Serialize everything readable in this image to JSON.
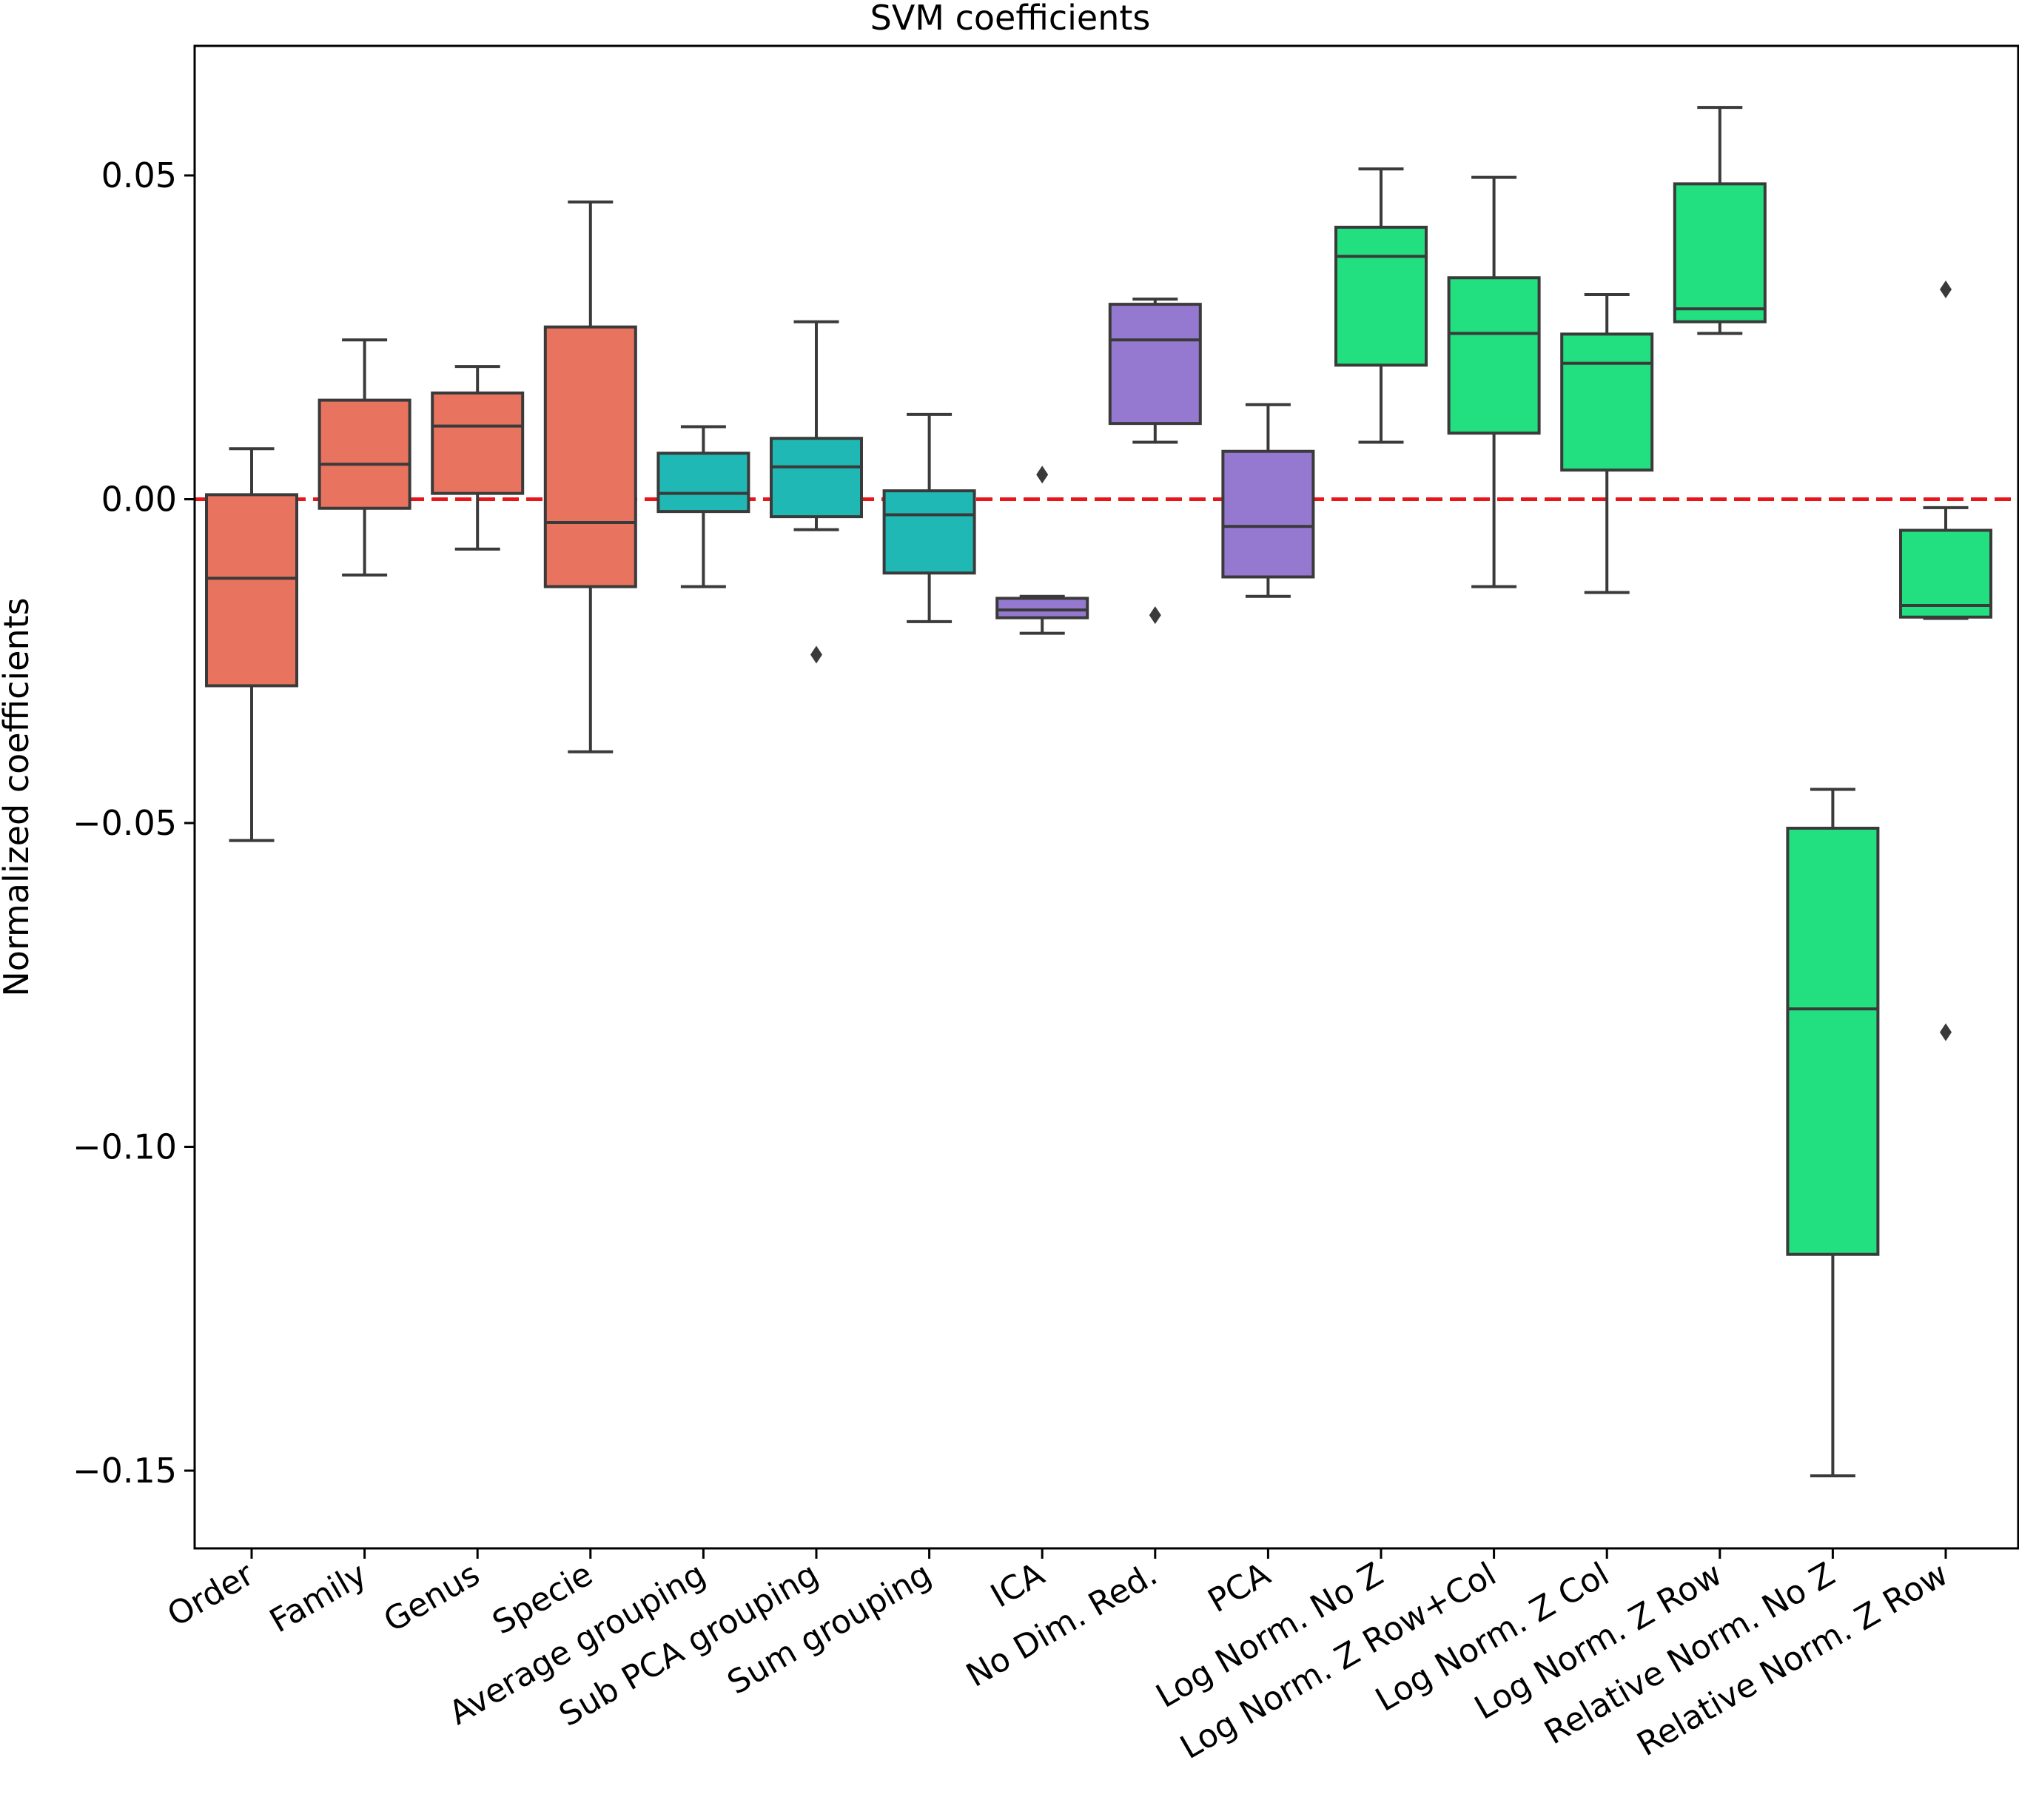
{
  "chart_data": {
    "type": "box",
    "title": "SVM coefficients",
    "xlabel": "",
    "ylabel": "Normalized coefficients",
    "ylim": [
      -0.162,
      0.07
    ],
    "yticks": [
      0.05,
      0.0,
      -0.05,
      -0.1,
      -0.15
    ],
    "ytick_labels": [
      "0.05",
      "0.00",
      "−0.05",
      "−0.10",
      "−0.15"
    ],
    "reference_line": {
      "value": 0.0,
      "color": "#e8151b",
      "style": "dashed"
    },
    "colors": {
      "taxonomy": "#e8735e",
      "grouping": "#1fb8b4",
      "dim_reduction": "#9579d1",
      "normalization": "#22df7f",
      "edge": "#3a3a3a"
    },
    "series": [
      {
        "name": "Order",
        "group": "taxonomy",
        "whislo": -0.0527,
        "q1": -0.0288,
        "med": -0.0122,
        "q3": 0.0007,
        "whishi": 0.0078,
        "fliers": []
      },
      {
        "name": "Family",
        "group": "taxonomy",
        "whislo": -0.0117,
        "q1": -0.0014,
        "med": 0.0054,
        "q3": 0.0153,
        "whishi": 0.0246,
        "fliers": []
      },
      {
        "name": "Genus",
        "group": "taxonomy",
        "whislo": -0.0077,
        "q1": 0.0009,
        "med": 0.0113,
        "q3": 0.0164,
        "whishi": 0.0205,
        "fliers": []
      },
      {
        "name": "Specie",
        "group": "taxonomy",
        "whislo": -0.039,
        "q1": -0.0135,
        "med": -0.0036,
        "q3": 0.0266,
        "whishi": 0.0459,
        "fliers": []
      },
      {
        "name": "Average grouping",
        "group": "grouping",
        "whislo": -0.0135,
        "q1": -0.0019,
        "med": 0.0009,
        "q3": 0.0071,
        "whishi": 0.0112,
        "fliers": []
      },
      {
        "name": "Sub PCA grouping",
        "group": "grouping",
        "whislo": -0.0047,
        "q1": -0.0027,
        "med": 0.005,
        "q3": 0.0094,
        "whishi": 0.0274,
        "fliers": [
          -0.024
        ]
      },
      {
        "name": "Sum grouping",
        "group": "grouping",
        "whislo": -0.0189,
        "q1": -0.0114,
        "med": -0.0024,
        "q3": 0.0013,
        "whishi": 0.0131,
        "fliers": []
      },
      {
        "name": "ICA",
        "group": "dim_reduction",
        "whislo": -0.0207,
        "q1": -0.0183,
        "med": -0.0171,
        "q3": -0.0153,
        "whishi": -0.015,
        "fliers": [
          0.0038
        ]
      },
      {
        "name": "No Dim. Red.",
        "group": "dim_reduction",
        "whislo": 0.0088,
        "q1": 0.0117,
        "med": 0.0246,
        "q3": 0.0301,
        "whishi": 0.0309,
        "fliers": [
          -0.0179
        ]
      },
      {
        "name": "PCA",
        "group": "dim_reduction",
        "whislo": -0.015,
        "q1": -0.012,
        "med": -0.0042,
        "q3": 0.0074,
        "whishi": 0.0146,
        "fliers": []
      },
      {
        "name": "Log Norm. No Z",
        "group": "normalization",
        "whislo": 0.0088,
        "q1": 0.0207,
        "med": 0.0375,
        "q3": 0.042,
        "whishi": 0.051,
        "fliers": []
      },
      {
        "name": "Log Norm. Z Row+Col",
        "group": "normalization",
        "whislo": -0.0135,
        "q1": 0.0102,
        "med": 0.0256,
        "q3": 0.0342,
        "whishi": 0.0497,
        "fliers": []
      },
      {
        "name": "Log Norm. Z Col",
        "group": "normalization",
        "whislo": -0.0144,
        "q1": 0.0045,
        "med": 0.021,
        "q3": 0.0255,
        "whishi": 0.0316,
        "fliers": []
      },
      {
        "name": "Log Norm. Z Row",
        "group": "normalization",
        "whislo": 0.0256,
        "q1": 0.0274,
        "med": 0.0294,
        "q3": 0.0487,
        "whishi": 0.0605,
        "fliers": []
      },
      {
        "name": "Relative Norm. No Z",
        "group": "normalization",
        "whislo": -0.1508,
        "q1": -0.1166,
        "med": -0.0787,
        "q3": -0.0508,
        "whishi": -0.0448,
        "fliers": []
      },
      {
        "name": "Relative Norm. Z Row",
        "group": "normalization",
        "whislo": -0.0184,
        "q1": -0.0182,
        "med": -0.0164,
        "q3": -0.0048,
        "whishi": -0.0013,
        "fliers": [
          0.0324,
          -0.0823
        ]
      }
    ]
  }
}
